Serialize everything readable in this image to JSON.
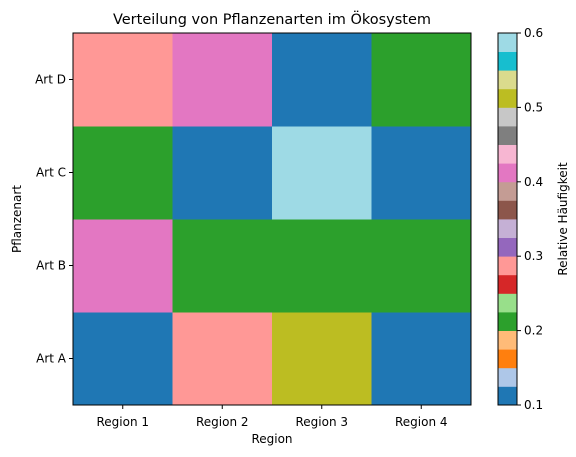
{
  "chart_data": {
    "type": "heatmap",
    "title": "Verteilung von Pflanzenarten im Ökosystem",
    "xlabel": "Region",
    "ylabel": "Pflanzenart",
    "x_categories": [
      "Region 1",
      "Region 2",
      "Region 3",
      "Region 4"
    ],
    "y_categories": [
      "Art A",
      "Art B",
      "Art C",
      "Art D"
    ],
    "values": [
      [
        0.1,
        0.3,
        0.5,
        0.1
      ],
      [
        0.4,
        0.2,
        0.2,
        0.2
      ],
      [
        0.2,
        0.1,
        0.6,
        0.1
      ],
      [
        0.3,
        0.4,
        0.1,
        0.2
      ]
    ],
    "colorbar": {
      "label": "Relative Häufigkeit",
      "range": [
        0.1,
        0.6
      ],
      "ticks": [
        "0.1",
        "0.2",
        "0.3",
        "0.4",
        "0.5",
        "0.6"
      ],
      "colormap": "tab20",
      "colors": [
        "#1f77b4",
        "#aec7e8",
        "#ff7f0e",
        "#ffbb78",
        "#2ca02c",
        "#98df8a",
        "#d62728",
        "#ff9896",
        "#9467bd",
        "#c5b0d5",
        "#8c564b",
        "#c49c94",
        "#e377c2",
        "#f7b6d2",
        "#7f7f7f",
        "#c7c7c7",
        "#bcbd22",
        "#dbdb8d",
        "#17becf",
        "#9edae5"
      ]
    }
  }
}
